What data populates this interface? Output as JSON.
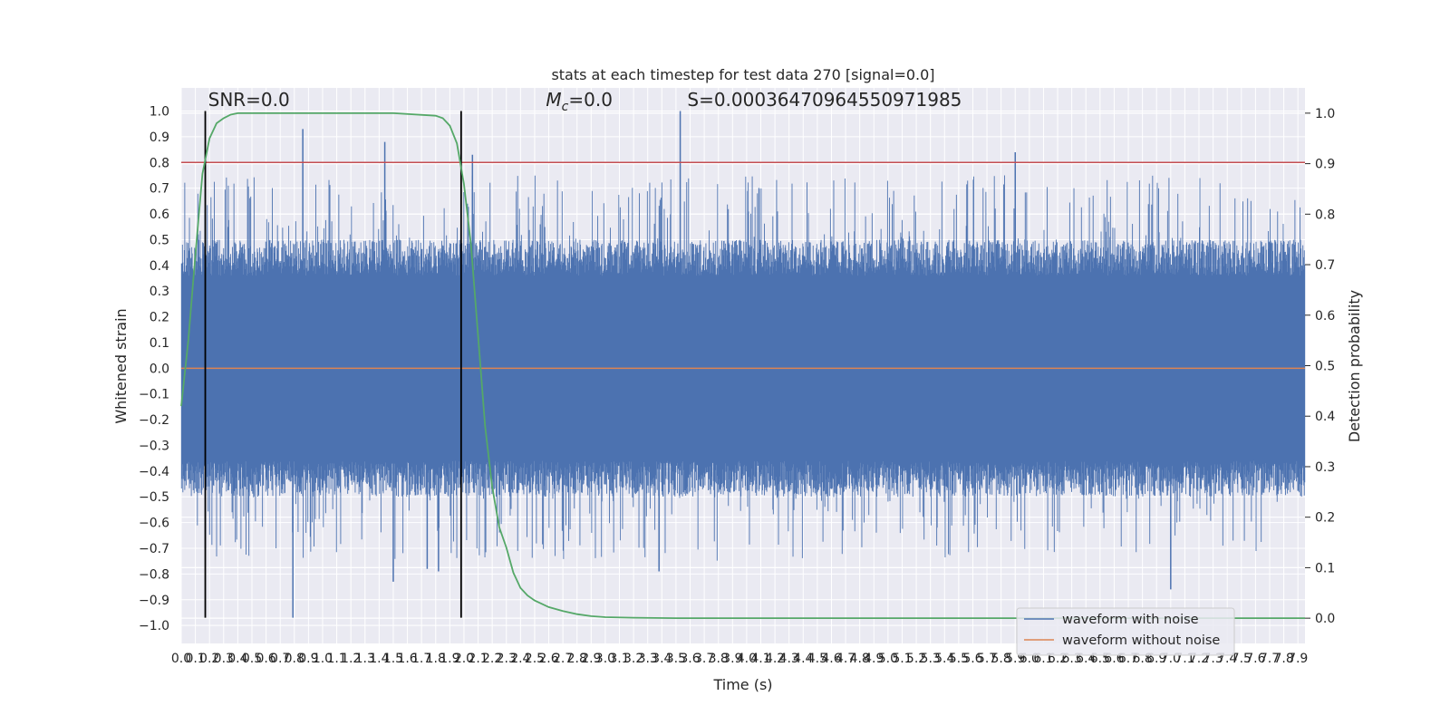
{
  "chart_data": {
    "type": "line",
    "title": "stats at each timestep for test data 270 [signal=0.0]",
    "xlabel": "Time (s)",
    "ylabel": "Whitened strain",
    "y2label": "Detection probability",
    "xlim": [
      0.0,
      7.95
    ],
    "ylim": [
      -1.07,
      1.09
    ],
    "y2lim": [
      -0.05,
      1.05
    ],
    "x_ticks": [
      0.0,
      0.1,
      0.2,
      0.3,
      0.4,
      0.5,
      0.6,
      0.7,
      0.8,
      0.9,
      1.0,
      1.1,
      1.2,
      1.3,
      1.4,
      1.5,
      1.6,
      1.7,
      1.8,
      1.9,
      2.0,
      2.1,
      2.2,
      2.3,
      2.4,
      2.5,
      2.6,
      2.7,
      2.8,
      2.9,
      3.0,
      3.1,
      3.2,
      3.3,
      3.4,
      3.5,
      3.6,
      3.7,
      3.8,
      3.9,
      4.0,
      4.1,
      4.2,
      4.3,
      4.4,
      4.5,
      4.6,
      4.7,
      4.8,
      4.9,
      5.0,
      5.1,
      5.2,
      5.3,
      5.4,
      5.5,
      5.6,
      5.7,
      5.8,
      5.9,
      6.0,
      6.1,
      6.2,
      6.3,
      6.4,
      6.5,
      6.6,
      6.7,
      6.8,
      6.9,
      7.0,
      7.1,
      7.2,
      7.3,
      7.4,
      7.5,
      7.6,
      7.7,
      7.8,
      7.9
    ],
    "x_tick_labels": [
      "0.0",
      "0.1",
      "0.2",
      "0.3",
      "0.4",
      "0.5",
      "0.6",
      "0.7",
      "0.8",
      "0.9",
      "1.0",
      "1.1",
      "1.2",
      "1.3",
      "1.4",
      "1.5",
      "1.6",
      "1.7",
      "1.8",
      "1.9",
      "2.0",
      "2.1",
      "2.2",
      "2.3",
      "2.4",
      "2.5",
      "2.6",
      "2.7",
      "2.8",
      "2.9",
      "3.0",
      "3.1",
      "3.2",
      "3.3",
      "3.4",
      "3.5",
      "3.6",
      "3.7",
      "3.8",
      "3.9",
      "4.0",
      "4.1",
      "4.2",
      "4.3",
      "4.4",
      "4.5",
      "4.6",
      "4.7",
      "4.8",
      "4.9",
      "5.0",
      "5.1",
      "5.2",
      "5.3",
      "5.4",
      "5.5",
      "5.6",
      "5.7",
      "5.8",
      "5.9",
      "6.0",
      "6.1",
      "6.2",
      "6.3",
      "6.4",
      "6.5",
      "6.6",
      "6.7",
      "6.8",
      "6.9",
      "7.0",
      "7.1",
      "7.2",
      "7.3",
      "7.4",
      "7.5",
      "7.6",
      "7.7",
      "7.8",
      "7.9"
    ],
    "y_ticks": [
      -1.0,
      -0.9,
      -0.8,
      -0.7,
      -0.6,
      -0.5,
      -0.4,
      -0.3,
      -0.2,
      -0.1,
      0.0,
      0.1,
      0.2,
      0.3,
      0.4,
      0.5,
      0.6,
      0.7,
      0.8,
      0.9,
      1.0
    ],
    "y_tick_labels": [
      "−1.0",
      "−0.9",
      "−0.8",
      "−0.7",
      "−0.6",
      "−0.5",
      "−0.4",
      "−0.3",
      "−0.2",
      "−0.1",
      "0.0",
      "0.1",
      "0.2",
      "0.3",
      "0.4",
      "0.5",
      "0.6",
      "0.7",
      "0.8",
      "0.9",
      "1.0"
    ],
    "y2_ticks": [
      0.0,
      0.1,
      0.2,
      0.3,
      0.4,
      0.5,
      0.6,
      0.7,
      0.8,
      0.9,
      1.0
    ],
    "y2_tick_labels": [
      "0.0",
      "0.1",
      "0.2",
      "0.3",
      "0.4",
      "0.5",
      "0.6",
      "0.7",
      "0.8",
      "0.9",
      "1.0"
    ],
    "grid": true,
    "legend_position": "bottom-right",
    "series": [
      {
        "name": "waveform with noise",
        "color": "#4c72b0",
        "axis": "left",
        "style": "noise",
        "envelope_typical": [
          -0.4,
          0.4
        ],
        "spikes": [
          {
            "x": 0.17,
            "y": -0.7
          },
          {
            "x": 0.79,
            "y": -0.97
          },
          {
            "x": 0.86,
            "y": 0.93
          },
          {
            "x": 1.44,
            "y": 0.88
          },
          {
            "x": 1.5,
            "y": -0.83
          },
          {
            "x": 1.74,
            "y": -0.78
          },
          {
            "x": 1.82,
            "y": -0.79
          },
          {
            "x": 2.06,
            "y": 0.83
          },
          {
            "x": 3.53,
            "y": 1.0
          },
          {
            "x": 3.38,
            "y": -0.79
          },
          {
            "x": 5.9,
            "y": 0.84
          },
          {
            "x": 7.0,
            "y": -0.86
          }
        ]
      },
      {
        "name": "waveform without noise",
        "color": "#dd8452",
        "axis": "left",
        "x": [
          0.0,
          7.95
        ],
        "y": [
          0.0,
          0.0
        ]
      },
      {
        "name": "",
        "color": "#55a868",
        "axis": "right",
        "x": [
          0.0,
          0.05,
          0.1,
          0.15,
          0.2,
          0.25,
          0.3,
          0.35,
          0.4,
          0.5,
          0.7,
          1.0,
          1.5,
          1.8,
          1.85,
          1.9,
          1.95,
          2.0,
          2.05,
          2.1,
          2.15,
          2.2,
          2.25,
          2.3,
          2.35,
          2.4,
          2.45,
          2.5,
          2.6,
          2.7,
          2.8,
          2.9,
          3.0,
          3.2,
          3.5,
          4.0,
          5.0,
          6.0,
          7.0,
          7.95
        ],
        "y": [
          0.42,
          0.55,
          0.72,
          0.88,
          0.95,
          0.98,
          0.99,
          0.997,
          1.0,
          1.0,
          1.0,
          1.0,
          1.0,
          0.995,
          0.99,
          0.975,
          0.94,
          0.86,
          0.74,
          0.56,
          0.38,
          0.26,
          0.18,
          0.14,
          0.09,
          0.06,
          0.045,
          0.035,
          0.022,
          0.014,
          0.008,
          0.004,
          0.002,
          0.001,
          0.0,
          0.0,
          0.0,
          0.0,
          0.0,
          0.0
        ]
      }
    ],
    "vlines": [
      {
        "x": 0.17,
        "ymin": -0.97,
        "ymax": 1.0,
        "color": "#000000"
      },
      {
        "x": 1.98,
        "ymin": -0.97,
        "ymax": 1.0,
        "color": "#000000"
      }
    ],
    "hlines": [
      {
        "y": 0.8,
        "color": "#c44e52"
      }
    ],
    "annotations": [
      {
        "text": "SNR=0.0",
        "x": 0.19,
        "y": 1.03
      },
      {
        "text_main": "M",
        "text_sub": "c",
        "text_rest": "=0.0",
        "x": 2.58,
        "y": 1.03
      },
      {
        "text": "S=0.00036470964550971985",
        "x": 3.58,
        "y": 1.03
      }
    ]
  }
}
